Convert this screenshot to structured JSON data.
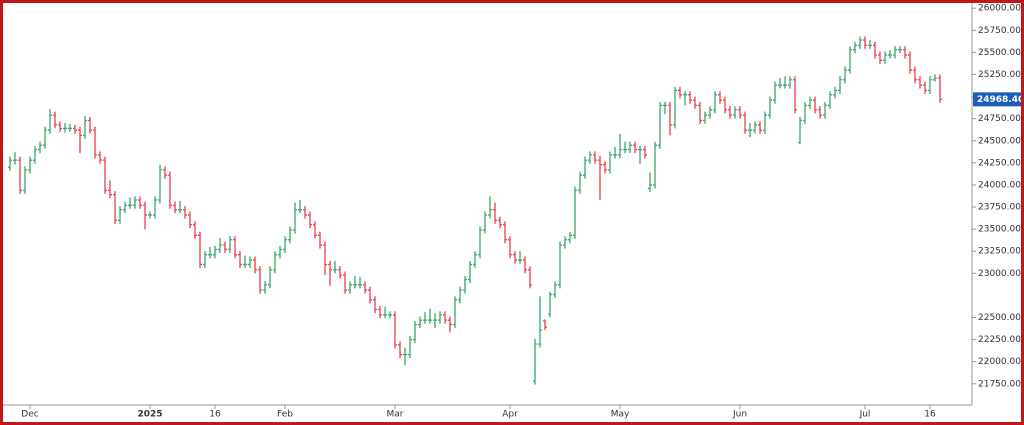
{
  "chart_data": {
    "type": "ohlc",
    "up_color": "#3aa86b",
    "down_color": "#e8404a",
    "frame_color": "#c01818",
    "price_tag_color": "#1e5fb4",
    "ylim": [
      21510,
      26070
    ],
    "xlim": [
      -1,
      192.4
    ],
    "yticks": [
      {
        "value": 21750,
        "label": "21750.00"
      },
      {
        "value": 22000,
        "label": "22000.00"
      },
      {
        "value": 22250,
        "label": "22250.00"
      },
      {
        "value": 22500,
        "label": "22500.00"
      },
      {
        "value": 23000,
        "label": "23000.00"
      },
      {
        "value": 23250,
        "label": "23250.00"
      },
      {
        "value": 23500,
        "label": "23500.00"
      },
      {
        "value": 23750,
        "label": "23750.00"
      },
      {
        "value": 24000,
        "label": "24000.00"
      },
      {
        "value": 24250,
        "label": "24250.00"
      },
      {
        "value": 24500,
        "label": "24500.00"
      },
      {
        "value": 24750,
        "label": "24750.00"
      },
      {
        "value": 25000,
        "label": "25000.00"
      },
      {
        "value": 25250,
        "label": "25250.00"
      },
      {
        "value": 25500,
        "label": "25500.00"
      },
      {
        "value": 25750,
        "label": "25750.00"
      },
      {
        "value": 26000,
        "label": "26000.00"
      }
    ],
    "xticks": [
      {
        "value": 4,
        "label": "Dec"
      },
      {
        "value": 28,
        "label": "2025"
      },
      {
        "value": 41,
        "label": "16"
      },
      {
        "value": 55,
        "label": "Feb"
      },
      {
        "value": 77,
        "label": "Mar"
      },
      {
        "value": 100,
        "label": "Apr"
      },
      {
        "value": 122,
        "label": "May"
      },
      {
        "value": 146,
        "label": "Jun"
      },
      {
        "value": 171,
        "label": "Jul"
      },
      {
        "value": 184,
        "label": "16"
      }
    ],
    "last_price": {
      "value": 24968.4,
      "label": "24968.40"
    },
    "ohlc": [
      [
        24200,
        24320,
        24160,
        24280
      ],
      [
        24280,
        24370,
        24230,
        24280
      ],
      [
        24280,
        24320,
        23900,
        23940
      ],
      [
        23940,
        24210,
        23900,
        24170
      ],
      [
        24170,
        24320,
        24130,
        24280
      ],
      [
        24280,
        24440,
        24240,
        24400
      ],
      [
        24400,
        24490,
        24360,
        24450
      ],
      [
        24450,
        24660,
        24410,
        24620
      ],
      [
        24620,
        24860,
        24580,
        24790
      ],
      [
        24790,
        24830,
        24640,
        24680
      ],
      [
        24680,
        24720,
        24600,
        24640
      ],
      [
        24640,
        24700,
        24590,
        24640
      ],
      [
        24640,
        24690,
        24600,
        24640
      ],
      [
        24640,
        24680,
        24580,
        24620
      ],
      [
        24620,
        24660,
        24360,
        24560
      ],
      [
        24560,
        24780,
        24520,
        24730
      ],
      [
        24730,
        24770,
        24580,
        24620
      ],
      [
        24620,
        24660,
        24300,
        24340
      ],
      [
        24340,
        24380,
        24240,
        24280
      ],
      [
        24280,
        24320,
        23900,
        23940
      ],
      [
        23940,
        24050,
        23850,
        23890
      ],
      [
        23890,
        23930,
        23560,
        23600
      ],
      [
        23600,
        23760,
        23560,
        23720
      ],
      [
        23720,
        23810,
        23680,
        23770
      ],
      [
        23770,
        23860,
        23730,
        23770
      ],
      [
        23770,
        23870,
        23730,
        23830
      ],
      [
        23830,
        23870,
        23730,
        23770
      ],
      [
        23770,
        23810,
        23500,
        23660
      ],
      [
        23660,
        23700,
        23620,
        23660
      ],
      [
        23660,
        23870,
        23620,
        23830
      ],
      [
        23830,
        24230,
        23790,
        24170
      ],
      [
        24170,
        24210,
        24070,
        24110
      ],
      [
        24110,
        24150,
        23730,
        23770
      ],
      [
        23770,
        23810,
        23680,
        23720
      ],
      [
        23720,
        23820,
        23680,
        23720
      ],
      [
        23720,
        23760,
        23620,
        23660
      ],
      [
        23660,
        23700,
        23510,
        23550
      ],
      [
        23550,
        23590,
        23390,
        23430
      ],
      [
        23430,
        23470,
        23060,
        23100
      ],
      [
        23100,
        23250,
        23060,
        23210
      ],
      [
        23210,
        23300,
        23170,
        23210
      ],
      [
        23210,
        23310,
        23170,
        23270
      ],
      [
        23270,
        23400,
        23230,
        23320
      ],
      [
        23320,
        23360,
        23230,
        23270
      ],
      [
        23270,
        23420,
        23230,
        23380
      ],
      [
        23380,
        23420,
        23170,
        23210
      ],
      [
        23210,
        23250,
        23060,
        23100
      ],
      [
        23100,
        23200,
        23060,
        23100
      ],
      [
        23100,
        23190,
        23060,
        23150
      ],
      [
        23150,
        23190,
        23000,
        23040
      ],
      [
        23040,
        23080,
        22770,
        22810
      ],
      [
        22810,
        22910,
        22770,
        22870
      ],
      [
        22870,
        23080,
        22830,
        23040
      ],
      [
        23040,
        23250,
        23000,
        23210
      ],
      [
        23210,
        23310,
        23170,
        23270
      ],
      [
        23270,
        23420,
        23230,
        23380
      ],
      [
        23380,
        23530,
        23340,
        23490
      ],
      [
        23490,
        23800,
        23450,
        23720
      ],
      [
        23720,
        23830,
        23680,
        23720
      ],
      [
        23720,
        23760,
        23620,
        23660
      ],
      [
        23660,
        23700,
        23510,
        23550
      ],
      [
        23550,
        23590,
        23390,
        23430
      ],
      [
        23430,
        23470,
        23280,
        23320
      ],
      [
        23320,
        23360,
        22980,
        23100
      ],
      [
        23100,
        23140,
        22860,
        23040
      ],
      [
        23040,
        23140,
        23000,
        23040
      ],
      [
        23040,
        23080,
        22940,
        22980
      ],
      [
        22980,
        23020,
        22770,
        22810
      ],
      [
        22810,
        22910,
        22770,
        22870
      ],
      [
        22870,
        22970,
        22830,
        22870
      ],
      [
        22870,
        22960,
        22830,
        22870
      ],
      [
        22870,
        22910,
        22770,
        22810
      ],
      [
        22810,
        22850,
        22660,
        22700
      ],
      [
        22700,
        22740,
        22550,
        22590
      ],
      [
        22590,
        22630,
        22490,
        22530
      ],
      [
        22530,
        22620,
        22490,
        22530
      ],
      [
        22530,
        22570,
        22490,
        22530
      ],
      [
        22530,
        22570,
        22150,
        22190
      ],
      [
        22190,
        22230,
        22040,
        22080
      ],
      [
        22080,
        22160,
        21960,
        22080
      ],
      [
        22080,
        22290,
        22040,
        22250
      ],
      [
        22250,
        22460,
        22210,
        22420
      ],
      [
        22420,
        22510,
        22380,
        22470
      ],
      [
        22470,
        22560,
        22430,
        22470
      ],
      [
        22470,
        22600,
        22430,
        22470
      ],
      [
        22470,
        22550,
        22380,
        22470
      ],
      [
        22470,
        22570,
        22430,
        22530
      ],
      [
        22530,
        22570,
        22430,
        22470
      ],
      [
        22470,
        22510,
        22330,
        22420
      ],
      [
        22420,
        22740,
        22380,
        22700
      ],
      [
        22700,
        22850,
        22660,
        22810
      ],
      [
        22810,
        22970,
        22770,
        22930
      ],
      [
        22930,
        23140,
        22890,
        23100
      ],
      [
        23100,
        23250,
        23060,
        23210
      ],
      [
        23210,
        23530,
        23170,
        23490
      ],
      [
        23490,
        23700,
        23450,
        23660
      ],
      [
        23660,
        23870,
        23620,
        23720
      ],
      [
        23720,
        23800,
        23560,
        23600
      ],
      [
        23600,
        23640,
        23510,
        23550
      ],
      [
        23550,
        23590,
        23340,
        23380
      ],
      [
        23380,
        23420,
        23170,
        23210
      ],
      [
        23210,
        23250,
        23110,
        23150
      ],
      [
        23150,
        23250,
        23110,
        23150
      ],
      [
        23150,
        23190,
        23000,
        23040
      ],
      [
        23040,
        23080,
        22830,
        22870
      ],
      [
        21780,
        22260,
        21740,
        22200
      ],
      [
        22200,
        22740,
        22160,
        22360
      ],
      [
        22460,
        22480,
        22360,
        22390
      ],
      [
        22540,
        22790,
        22500,
        22760
      ],
      [
        22760,
        22910,
        22720,
        22870
      ],
      [
        22870,
        23360,
        22830,
        23320
      ],
      [
        23320,
        23420,
        23280,
        23380
      ],
      [
        23380,
        23470,
        23340,
        23430
      ],
      [
        23430,
        23980,
        23390,
        23940
      ],
      [
        23940,
        24150,
        23900,
        24110
      ],
      [
        24110,
        24320,
        24070,
        24280
      ],
      [
        24280,
        24380,
        24240,
        24340
      ],
      [
        24340,
        24380,
        24240,
        24280
      ],
      [
        24280,
        24330,
        23830,
        24230
      ],
      [
        24230,
        24270,
        24130,
        24170
      ],
      [
        24170,
        24380,
        24130,
        24340
      ],
      [
        24340,
        24430,
        24300,
        24340
      ],
      [
        24340,
        24580,
        24300,
        24400
      ],
      [
        24400,
        24490,
        24360,
        24400
      ],
      [
        24400,
        24490,
        24360,
        24450
      ],
      [
        24450,
        24490,
        24360,
        24400
      ],
      [
        24400,
        24440,
        24240,
        24400
      ],
      [
        24400,
        24440,
        24300,
        24340
      ],
      [
        23960,
        24140,
        23920,
        24000
      ],
      [
        24000,
        24490,
        23960,
        24450
      ],
      [
        24450,
        24940,
        24410,
        24900
      ],
      [
        24900,
        24940,
        24800,
        24900
      ],
      [
        24900,
        24940,
        24560,
        24680
      ],
      [
        24680,
        25110,
        24640,
        25070
      ],
      [
        25070,
        25110,
        24980,
        25020
      ],
      [
        25020,
        25060,
        24900,
        25020
      ],
      [
        25020,
        25060,
        24920,
        24960
      ],
      [
        24960,
        25000,
        24860,
        24900
      ],
      [
        24900,
        24940,
        24690,
        24730
      ],
      [
        24730,
        24830,
        24690,
        24790
      ],
      [
        24790,
        24890,
        24750,
        24850
      ],
      [
        24850,
        25060,
        24810,
        25020
      ],
      [
        25020,
        25060,
        24920,
        24960
      ],
      [
        24960,
        25000,
        24810,
        24850
      ],
      [
        24850,
        24890,
        24750,
        24790
      ],
      [
        24790,
        24890,
        24750,
        24850
      ],
      [
        24850,
        24890,
        24750,
        24790
      ],
      [
        24790,
        24830,
        24580,
        24620
      ],
      [
        24620,
        24700,
        24540,
        24620
      ],
      [
        24620,
        24720,
        24580,
        24680
      ],
      [
        24680,
        24720,
        24580,
        24620
      ],
      [
        24620,
        24830,
        24580,
        24790
      ],
      [
        24790,
        25000,
        24750,
        24960
      ],
      [
        24960,
        25170,
        24920,
        25130
      ],
      [
        25130,
        25210,
        25090,
        25130
      ],
      [
        25130,
        25230,
        25090,
        25130
      ],
      [
        25130,
        25230,
        25090,
        25190
      ],
      [
        25190,
        25230,
        24810,
        24850
      ],
      [
        24480,
        24770,
        24460,
        24730
      ],
      [
        24730,
        24940,
        24690,
        24900
      ],
      [
        24900,
        25000,
        24860,
        24960
      ],
      [
        24960,
        25000,
        24810,
        24850
      ],
      [
        24850,
        24890,
        24750,
        24790
      ],
      [
        24790,
        24940,
        24750,
        24900
      ],
      [
        24900,
        25060,
        24860,
        25020
      ],
      [
        25020,
        25110,
        24980,
        25070
      ],
      [
        25070,
        25230,
        25030,
        25190
      ],
      [
        25190,
        25340,
        25150,
        25300
      ],
      [
        25300,
        25570,
        25260,
        25530
      ],
      [
        25530,
        25620,
        25490,
        25580
      ],
      [
        25580,
        25680,
        25540,
        25640
      ],
      [
        25640,
        25680,
        25540,
        25580
      ],
      [
        25580,
        25640,
        25540,
        25580
      ],
      [
        25580,
        25620,
        25430,
        25470
      ],
      [
        25470,
        25510,
        25370,
        25410
      ],
      [
        25410,
        25510,
        25370,
        25470
      ],
      [
        25470,
        25530,
        25430,
        25470
      ],
      [
        25470,
        25570,
        25430,
        25530
      ],
      [
        25530,
        25570,
        25490,
        25530
      ],
      [
        25530,
        25570,
        25430,
        25470
      ],
      [
        25470,
        25510,
        25260,
        25300
      ],
      [
        25300,
        25340,
        25150,
        25190
      ],
      [
        25190,
        25230,
        25090,
        25130
      ],
      [
        25130,
        25170,
        25030,
        25070
      ],
      [
        25070,
        25230,
        25030,
        25190
      ],
      [
        25190,
        25250,
        25170,
        25210
      ],
      [
        25210,
        25250,
        24930,
        24968.4
      ]
    ]
  }
}
